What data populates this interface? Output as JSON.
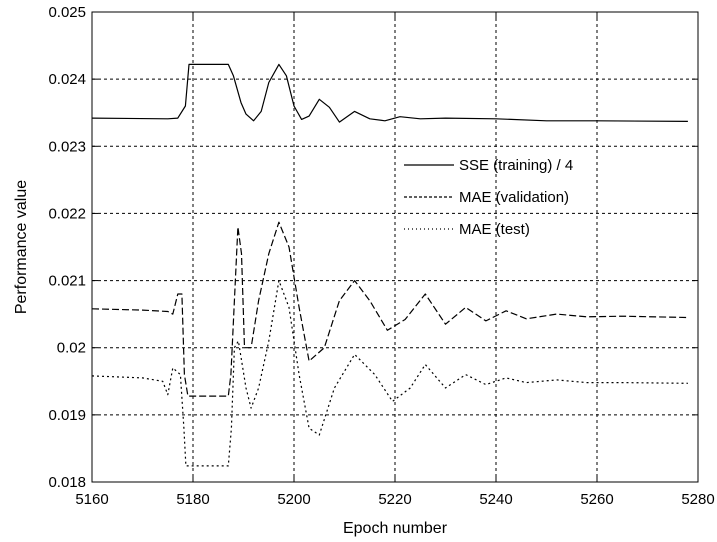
{
  "chart_data": {
    "type": "line",
    "xlabel": "Epoch number",
    "ylabel": "Performance value",
    "xlim": [
      5160,
      5280
    ],
    "ylim": [
      0.018,
      0.025
    ],
    "x_ticks": [
      5160,
      5180,
      5200,
      5220,
      5240,
      5260,
      5280
    ],
    "x_tick_labels": [
      "5160",
      "5180",
      "5200",
      "5220",
      "5240",
      "5260",
      "5280"
    ],
    "y_ticks": [
      0.018,
      0.019,
      0.02,
      0.021,
      0.022,
      0.023,
      0.024,
      0.025
    ],
    "y_tick_labels": [
      "0.018",
      "0.019",
      "0.02",
      "0.021",
      "0.022",
      "0.023",
      "0.024",
      "0.025"
    ],
    "grid": true,
    "legend_position": "center-right",
    "series": [
      {
        "name": "SSE (training) / 4",
        "style": "solid",
        "points": [
          [
            5160,
            0.02342
          ],
          [
            5175,
            0.02341
          ],
          [
            5177,
            0.02342
          ],
          [
            5178.5,
            0.0236
          ],
          [
            5179.2,
            0.02422
          ],
          [
            5187,
            0.02422
          ],
          [
            5188,
            0.02405
          ],
          [
            5189.5,
            0.02365
          ],
          [
            5190.5,
            0.02348
          ],
          [
            5192,
            0.02338
          ],
          [
            5193.5,
            0.02352
          ],
          [
            5195,
            0.02395
          ],
          [
            5197,
            0.02422
          ],
          [
            5198.5,
            0.02405
          ],
          [
            5200,
            0.0236
          ],
          [
            5201.5,
            0.0234
          ],
          [
            5203,
            0.02345
          ],
          [
            5205,
            0.0237
          ],
          [
            5207,
            0.02358
          ],
          [
            5209,
            0.02336
          ],
          [
            5212,
            0.02352
          ],
          [
            5215,
            0.02341
          ],
          [
            5218,
            0.02338
          ],
          [
            5221,
            0.02344
          ],
          [
            5225,
            0.02341
          ],
          [
            5230,
            0.02342
          ],
          [
            5240,
            0.02341
          ],
          [
            5250,
            0.02338
          ],
          [
            5260,
            0.02338
          ],
          [
            5278,
            0.02337
          ]
        ]
      },
      {
        "name": "MAE (validation)",
        "style": "dashed",
        "points": [
          [
            5160,
            0.02058
          ],
          [
            5170,
            0.02056
          ],
          [
            5175,
            0.02054
          ],
          [
            5176,
            0.0205
          ],
          [
            5177,
            0.0208
          ],
          [
            5177.8,
            0.0208
          ],
          [
            5178.3,
            0.0196
          ],
          [
            5179,
            0.01928
          ],
          [
            5185,
            0.01928
          ],
          [
            5187,
            0.01928
          ],
          [
            5187.5,
            0.0196
          ],
          [
            5188.2,
            0.0207
          ],
          [
            5188.9,
            0.0218
          ],
          [
            5189.6,
            0.0214
          ],
          [
            5190.2,
            0.02
          ],
          [
            5191.5,
            0.02
          ],
          [
            5193,
            0.0207
          ],
          [
            5195,
            0.0214
          ],
          [
            5197,
            0.02187
          ],
          [
            5199,
            0.0215
          ],
          [
            5201,
            0.0206
          ],
          [
            5203,
            0.0198
          ],
          [
            5206,
            0.02
          ],
          [
            5209,
            0.0207
          ],
          [
            5212,
            0.021
          ],
          [
            5215,
            0.0207
          ],
          [
            5218.5,
            0.02026
          ],
          [
            5222,
            0.02042
          ],
          [
            5226,
            0.0208
          ],
          [
            5230,
            0.02035
          ],
          [
            5234,
            0.0206
          ],
          [
            5238,
            0.0204
          ],
          [
            5242,
            0.02055
          ],
          [
            5246,
            0.02043
          ],
          [
            5252,
            0.0205
          ],
          [
            5258,
            0.02046
          ],
          [
            5265,
            0.02047
          ],
          [
            5278,
            0.02045
          ]
        ]
      },
      {
        "name": "MAE (test)",
        "style": "dotted",
        "points": [
          [
            5160,
            0.01958
          ],
          [
            5170,
            0.01955
          ],
          [
            5174,
            0.0195
          ],
          [
            5175,
            0.0193
          ],
          [
            5176,
            0.0197
          ],
          [
            5177.5,
            0.0196
          ],
          [
            5178.2,
            0.0188
          ],
          [
            5178.6,
            0.01824
          ],
          [
            5187,
            0.01824
          ],
          [
            5187.6,
            0.0188
          ],
          [
            5188.2,
            0.02
          ],
          [
            5189,
            0.0201
          ],
          [
            5190.5,
            0.0194
          ],
          [
            5191.5,
            0.0191
          ],
          [
            5193,
            0.0194
          ],
          [
            5195,
            0.0201
          ],
          [
            5197,
            0.021
          ],
          [
            5199,
            0.0206
          ],
          [
            5201,
            0.0196
          ],
          [
            5203,
            0.0188
          ],
          [
            5205,
            0.0187
          ],
          [
            5208,
            0.0194
          ],
          [
            5212,
            0.0199
          ],
          [
            5216,
            0.0196
          ],
          [
            5219.5,
            0.0192
          ],
          [
            5223,
            0.0194
          ],
          [
            5226,
            0.01975
          ],
          [
            5230,
            0.0194
          ],
          [
            5234,
            0.0196
          ],
          [
            5238,
            0.01945
          ],
          [
            5242,
            0.01955
          ],
          [
            5246,
            0.01948
          ],
          [
            5252,
            0.01952
          ],
          [
            5258,
            0.01948
          ],
          [
            5265,
            0.01948
          ],
          [
            5278,
            0.01947
          ]
        ]
      }
    ]
  }
}
